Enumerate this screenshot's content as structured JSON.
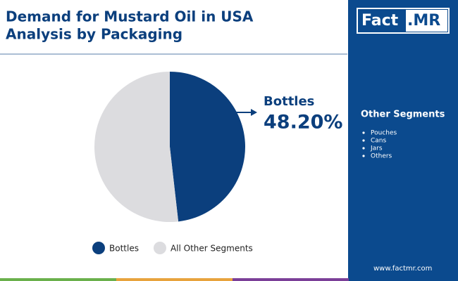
{
  "chart_data": {
    "type": "pie",
    "title": [
      "Demand for Mustard Oil in USA",
      "Analysis by Packaging"
    ],
    "categories": [
      "Bottles",
      "All Other Segments"
    ],
    "values": [
      48.2,
      51.8
    ],
    "value_labels": [
      "48.20%",
      null
    ],
    "colors": [
      "#0b3f7d",
      "#dcdcdf"
    ],
    "legend": "bottom"
  },
  "sidebar": {
    "logo": [
      "Fact",
      ".MR"
    ],
    "heading": "Other Segments",
    "items": [
      "Pouches",
      "Cans",
      "Jars",
      "Others"
    ],
    "website": "www.factmr.com"
  }
}
